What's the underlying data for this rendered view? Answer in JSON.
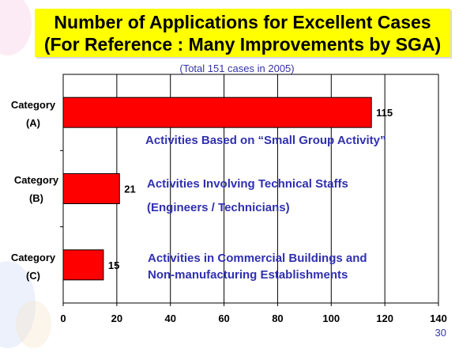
{
  "title": {
    "line1": "Number of Applications for Excellent Cases",
    "line2": "(For Reference : Many Improvements by SGA)"
  },
  "subtitle": "(Total 151 cases in 2005)",
  "page_number": "30",
  "categories_display": [
    {
      "line1": "Category",
      "line2": "(A)"
    },
    {
      "line1": "Category",
      "line2": "(B)"
    },
    {
      "line1": "Category",
      "line2": "(C)"
    }
  ],
  "annotations": {
    "a": "Activities Based on “Small Group Activity”",
    "b1": "Activities Involving Technical Staffs",
    "b2": "(Engineers / Technicians)",
    "c1": "Activities in Commercial Buildings and",
    "c2": "Non-manufacturing Establishments"
  },
  "colors": {
    "bar": "#ff0000",
    "title_bg": "#ffff00",
    "annotation": "#3030b0"
  },
  "chart_data": {
    "type": "bar",
    "orientation": "horizontal",
    "categories": [
      "Category (A)",
      "Category (B)",
      "Category (C)"
    ],
    "values": [
      115,
      21,
      15
    ],
    "data_labels": [
      "115",
      "21",
      "15"
    ],
    "xlim": [
      0,
      140
    ],
    "xticks": [
      0,
      20,
      40,
      60,
      80,
      100,
      120,
      140
    ],
    "grid": "vertical"
  }
}
